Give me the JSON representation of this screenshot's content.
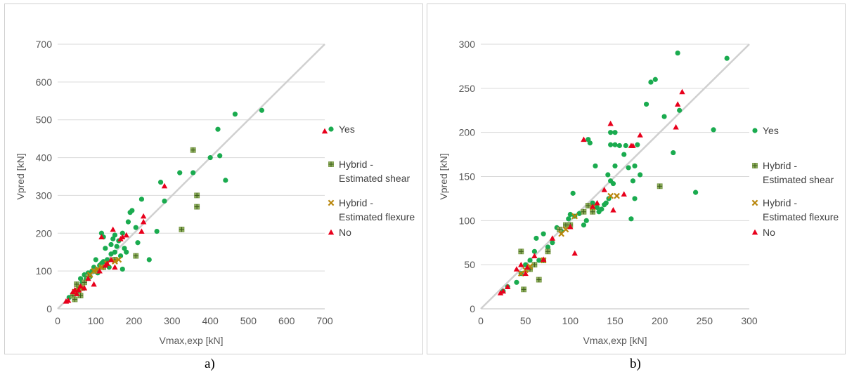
{
  "colors": {
    "yes": "#1aab4f",
    "shear": "#8cae5a",
    "flexure": "#b8860b",
    "no": "#e8001c",
    "diag": "#d0d0d0",
    "grid": "#d9d9d9"
  },
  "captions": {
    "a": "a)",
    "b": "b)"
  },
  "chart_data": [
    {
      "type": "scatter",
      "title": "",
      "xlabel": "Vmax,exp [kN]",
      "ylabel": "Vpred [kN]",
      "xlim": [
        0,
        700
      ],
      "ylim": [
        0,
        700
      ],
      "xticks": [
        0,
        100,
        200,
        300,
        400,
        500,
        600,
        700
      ],
      "yticks": [
        0,
        100,
        200,
        300,
        400,
        500,
        600,
        700
      ],
      "diagonal": true,
      "legend": "right",
      "series": [
        {
          "key": "yes",
          "name": "Yes",
          "marker": "circle",
          "points": [
            [
              30,
              30
            ],
            [
              40,
              40
            ],
            [
              50,
              50
            ],
            [
              55,
              55
            ],
            [
              60,
              80
            ],
            [
              65,
              70
            ],
            [
              70,
              90
            ],
            [
              75,
              80
            ],
            [
              80,
              95
            ],
            [
              85,
              85
            ],
            [
              90,
              100
            ],
            [
              95,
              110
            ],
            [
              100,
              105
            ],
            [
              100,
              130
            ],
            [
              105,
              95
            ],
            [
              110,
              115
            ],
            [
              115,
              120
            ],
            [
              115,
              200
            ],
            [
              120,
              190
            ],
            [
              120,
              125
            ],
            [
              125,
              160
            ],
            [
              130,
              130
            ],
            [
              135,
              110
            ],
            [
              140,
              145
            ],
            [
              140,
              170
            ],
            [
              145,
              185
            ],
            [
              150,
              150
            ],
            [
              150,
              195
            ],
            [
              155,
              165
            ],
            [
              160,
              180
            ],
            [
              165,
              140
            ],
            [
              170,
              105
            ],
            [
              170,
              200
            ],
            [
              175,
              160
            ],
            [
              180,
              150
            ],
            [
              185,
              230
            ],
            [
              190,
              255
            ],
            [
              195,
              260
            ],
            [
              205,
              215
            ],
            [
              210,
              175
            ],
            [
              220,
              290
            ],
            [
              240,
              130
            ],
            [
              260,
              205
            ],
            [
              270,
              335
            ],
            [
              280,
              285
            ],
            [
              320,
              360
            ],
            [
              355,
              360
            ],
            [
              400,
              400
            ],
            [
              420,
              475
            ],
            [
              425,
              405
            ],
            [
              440,
              340
            ],
            [
              465,
              515
            ],
            [
              535,
              525
            ]
          ]
        },
        {
          "key": "shear",
          "name": "Hybrid - Estimated shear",
          "marker": "square-cross",
          "points": [
            [
              40,
              35
            ],
            [
              45,
              25
            ],
            [
              50,
              65
            ],
            [
              55,
              45
            ],
            [
              60,
              35
            ],
            [
              65,
              55
            ],
            [
              70,
              70
            ],
            [
              80,
              85
            ],
            [
              100,
              100
            ],
            [
              120,
              110
            ],
            [
              150,
              130
            ],
            [
              205,
              140
            ],
            [
              325,
              210
            ],
            [
              355,
              420
            ],
            [
              365,
              270
            ],
            [
              365,
              300
            ]
          ]
        },
        {
          "key": "flexure",
          "name": "Hybrid - Estimated flexure",
          "marker": "x",
          "points": [
            [
              45,
              45
            ],
            [
              55,
              50
            ],
            [
              60,
              55
            ],
            [
              85,
              90
            ],
            [
              95,
              100
            ],
            [
              105,
              105
            ],
            [
              115,
              110
            ],
            [
              130,
              120
            ],
            [
              150,
              125
            ],
            [
              160,
              130
            ]
          ]
        },
        {
          "key": "no",
          "name": "No",
          "marker": "triangle",
          "points": [
            [
              22,
              20
            ],
            [
              28,
              22
            ],
            [
              40,
              45
            ],
            [
              45,
              50
            ],
            [
              50,
              40
            ],
            [
              55,
              50
            ],
            [
              60,
              60
            ],
            [
              70,
              55
            ],
            [
              80,
              80
            ],
            [
              95,
              65
            ],
            [
              110,
              100
            ],
            [
              115,
              190
            ],
            [
              125,
              115
            ],
            [
              130,
              120
            ],
            [
              140,
              130
            ],
            [
              145,
              210
            ],
            [
              150,
              110
            ],
            [
              165,
              185
            ],
            [
              170,
              190
            ],
            [
              180,
              195
            ],
            [
              220,
              205
            ],
            [
              225,
              230
            ],
            [
              225,
              245
            ],
            [
              280,
              325
            ],
            [
              700,
              470
            ]
          ]
        }
      ]
    },
    {
      "type": "scatter",
      "title": "",
      "xlabel": "Vmax,exp [kN]",
      "ylabel": "Vpred [kN]",
      "xlim": [
        0,
        300
      ],
      "ylim": [
        0,
        300
      ],
      "xticks": [
        0,
        50,
        100,
        150,
        200,
        250,
        300
      ],
      "yticks": [
        0,
        50,
        100,
        150,
        200,
        250,
        300
      ],
      "diagonal": true,
      "legend": "right",
      "series": [
        {
          "key": "yes",
          "name": "Yes",
          "marker": "circle",
          "points": [
            [
              25,
              20
            ],
            [
              30,
              25
            ],
            [
              40,
              30
            ],
            [
              45,
              40
            ],
            [
              50,
              50
            ],
            [
              55,
              55
            ],
            [
              60,
              65
            ],
            [
              62,
              80
            ],
            [
              65,
              55
            ],
            [
              70,
              85
            ],
            [
              75,
              70
            ],
            [
              80,
              75
            ],
            [
              85,
              92
            ],
            [
              90,
              88
            ],
            [
              95,
              95
            ],
            [
              98,
              102
            ],
            [
              100,
              107
            ],
            [
              103,
              131
            ],
            [
              105,
              105
            ],
            [
              110,
              108
            ],
            [
              115,
              95
            ],
            [
              118,
              100
            ],
            [
              120,
              192
            ],
            [
              122,
              188
            ],
            [
              125,
              120
            ],
            [
              128,
              162
            ],
            [
              130,
              115
            ],
            [
              132,
              110
            ],
            [
              135,
              113
            ],
            [
              138,
              118
            ],
            [
              140,
              120
            ],
            [
              142,
              152
            ],
            [
              143,
              125
            ],
            [
              145,
              145
            ],
            [
              145,
              186
            ],
            [
              145,
              200
            ],
            [
              148,
              142
            ],
            [
              150,
              186
            ],
            [
              150,
              200
            ],
            [
              150,
              162
            ],
            [
              155,
              185
            ],
            [
              160,
              175
            ],
            [
              162,
              185
            ],
            [
              165,
              160
            ],
            [
              168,
              102
            ],
            [
              170,
              145
            ],
            [
              172,
              125
            ],
            [
              172,
              162
            ],
            [
              175,
              186
            ],
            [
              178,
              152
            ],
            [
              185,
              232
            ],
            [
              190,
              257
            ],
            [
              195,
              260
            ],
            [
              205,
              218
            ],
            [
              215,
              177
            ],
            [
              220,
              290
            ],
            [
              222,
              225
            ],
            [
              240,
              132
            ],
            [
              260,
              203
            ],
            [
              275,
              284
            ]
          ]
        },
        {
          "key": "shear",
          "name": "Hybrid - Estimated shear",
          "marker": "square-cross",
          "points": [
            [
              45,
              65
            ],
            [
              48,
              22
            ],
            [
              55,
              45
            ],
            [
              60,
              50
            ],
            [
              65,
              33
            ],
            [
              70,
              55
            ],
            [
              75,
              65
            ],
            [
              88,
              90
            ],
            [
              95,
              95
            ],
            [
              100,
              95
            ],
            [
              115,
              110
            ],
            [
              120,
              117
            ],
            [
              125,
              110
            ],
            [
              200,
              139
            ]
          ]
        },
        {
          "key": "flexure",
          "name": "Hybrid - Estimated flexure",
          "marker": "x",
          "points": [
            [
              45,
              40
            ],
            [
              50,
              44
            ],
            [
              55,
              48
            ],
            [
              70,
              55
            ],
            [
              90,
              85
            ],
            [
              95,
              90
            ],
            [
              105,
              105
            ],
            [
              125,
              115
            ],
            [
              145,
              128
            ],
            [
              152,
              128
            ]
          ]
        },
        {
          "key": "no",
          "name": "No",
          "marker": "triangle",
          "points": [
            [
              22,
              18
            ],
            [
              25,
              20
            ],
            [
              30,
              25
            ],
            [
              40,
              45
            ],
            [
              45,
              50
            ],
            [
              50,
              40
            ],
            [
              52,
              47
            ],
            [
              60,
              60
            ],
            [
              70,
              56
            ],
            [
              80,
              80
            ],
            [
              100,
              93
            ],
            [
              105,
              63
            ],
            [
              115,
              192
            ],
            [
              125,
              116
            ],
            [
              130,
              120
            ],
            [
              138,
              135
            ],
            [
              145,
              210
            ],
            [
              148,
              112
            ],
            [
              160,
              130
            ],
            [
              168,
              185
            ],
            [
              170,
              185
            ],
            [
              178,
              197
            ],
            [
              218,
              206
            ],
            [
              220,
              232
            ],
            [
              225,
              246
            ]
          ]
        }
      ]
    }
  ]
}
